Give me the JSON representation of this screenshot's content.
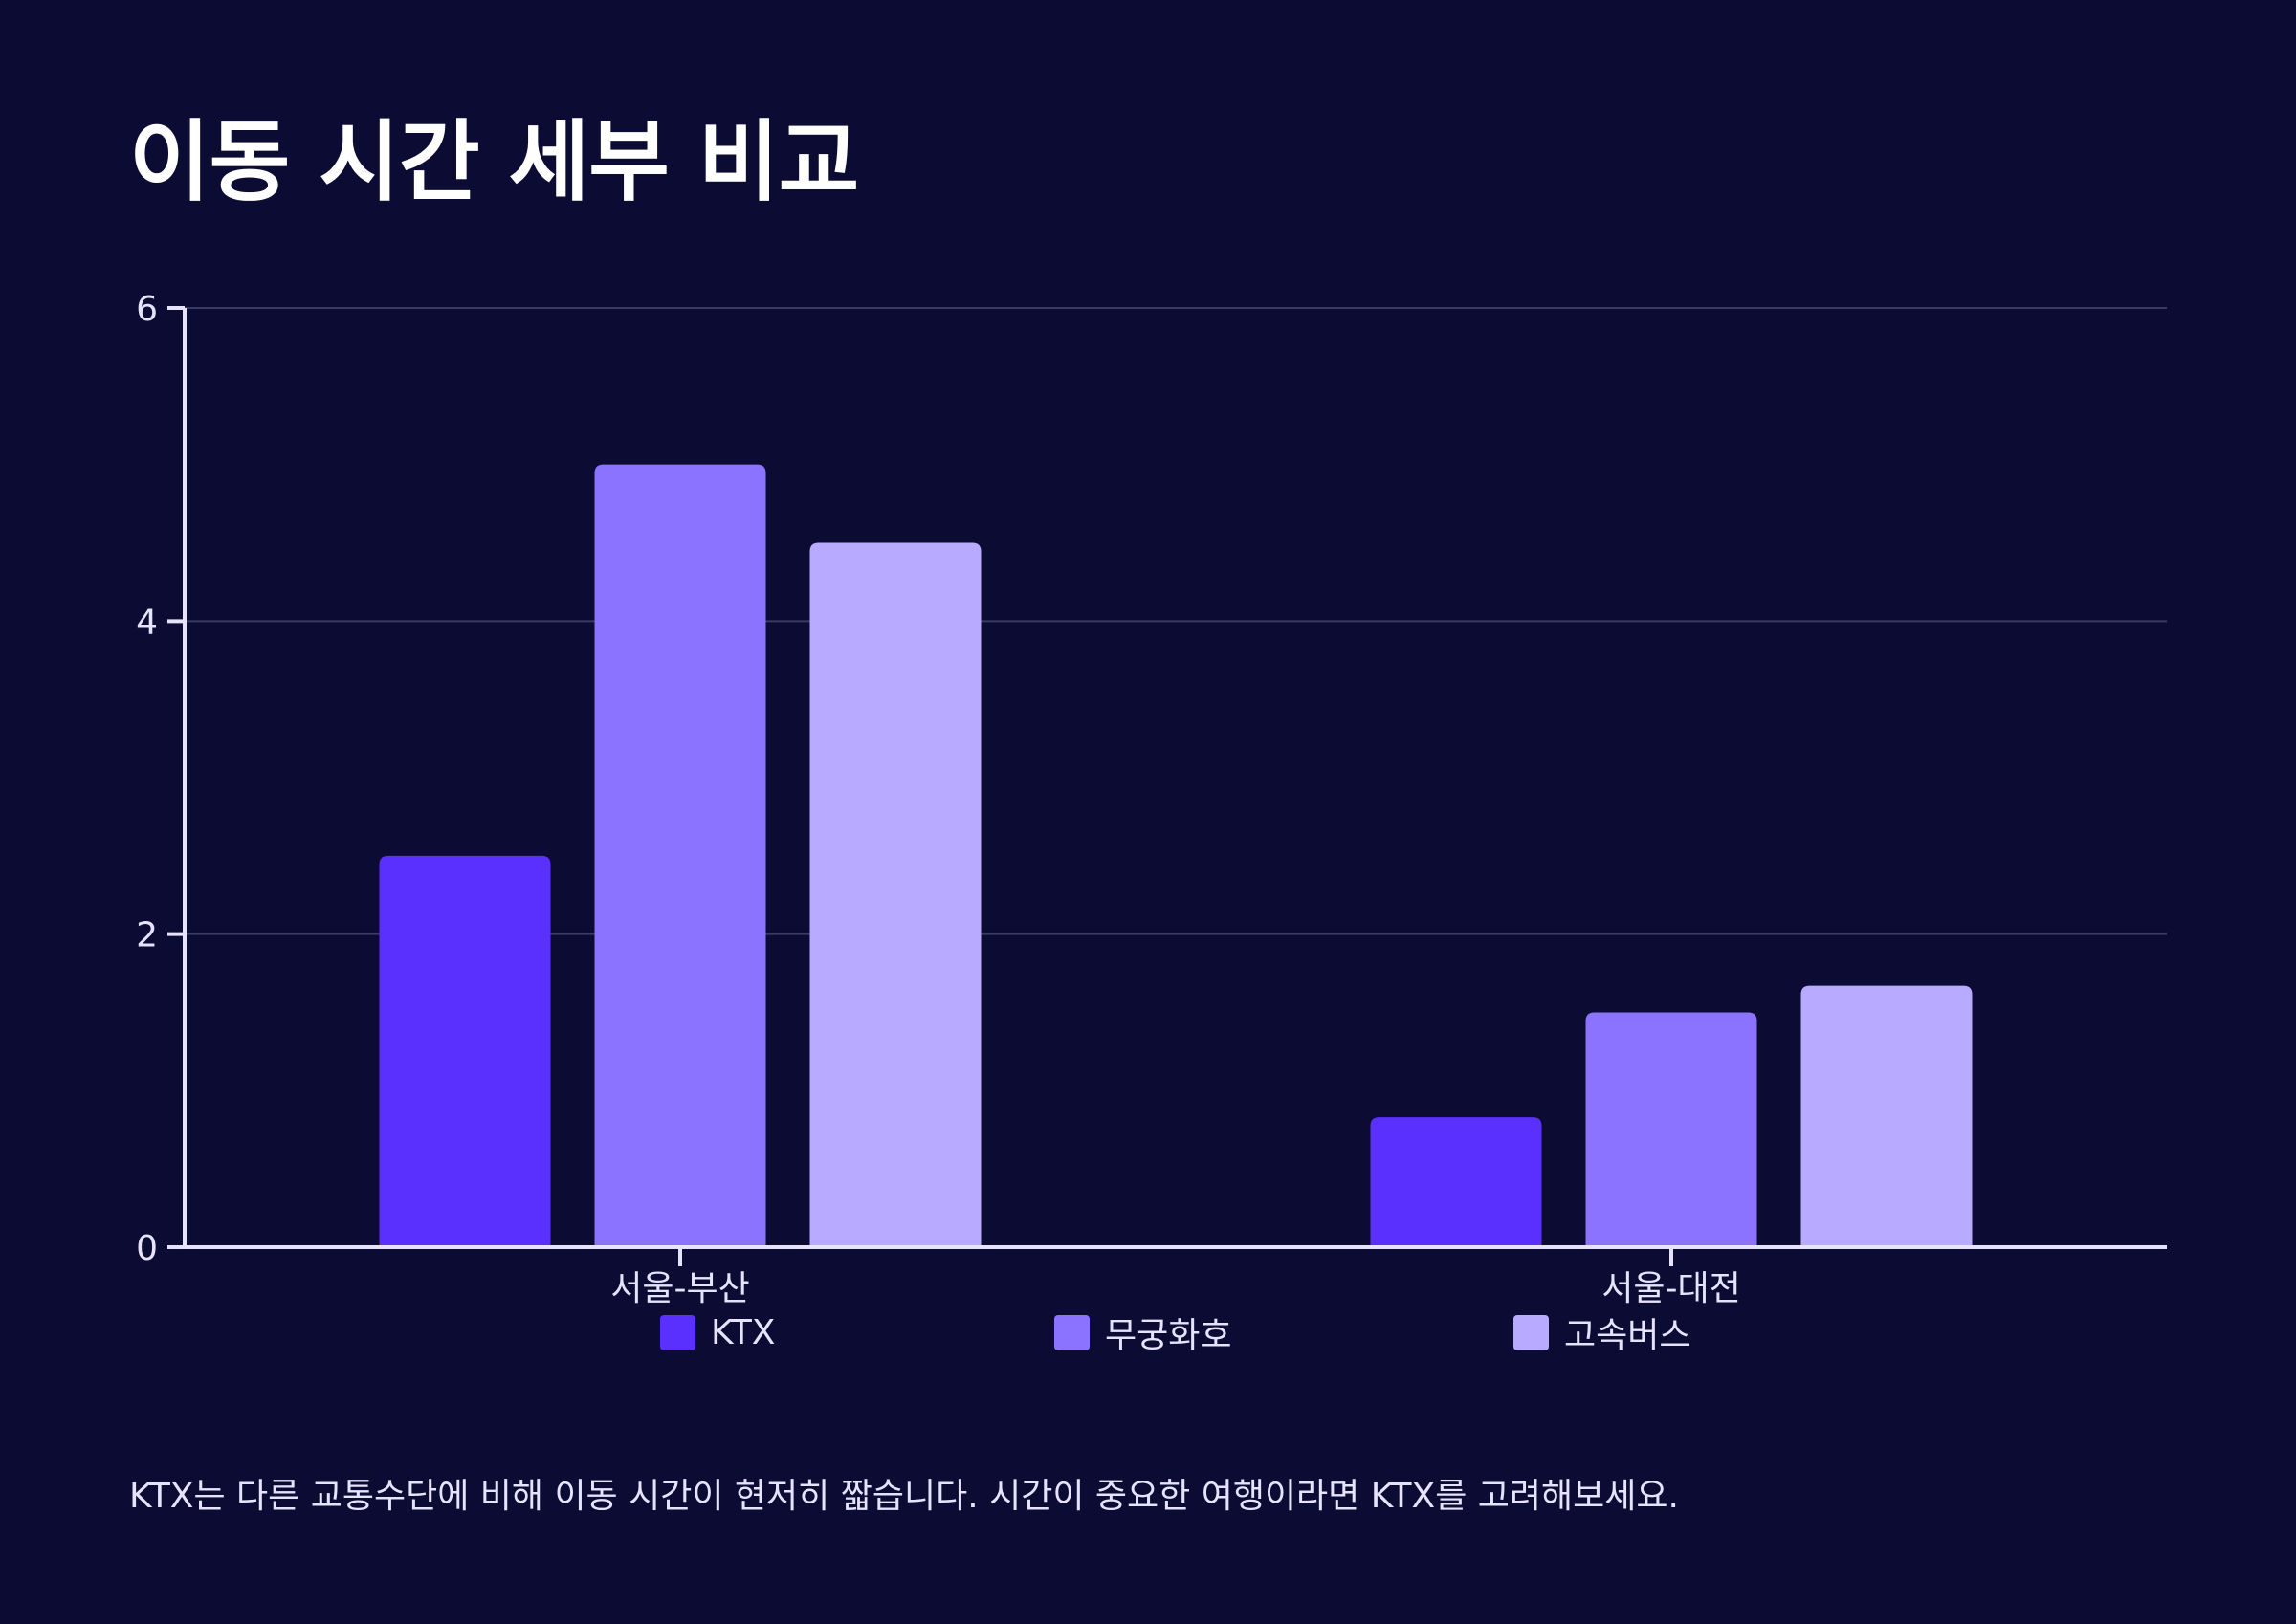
{
  "title": "이동 시간 세부 비교",
  "caption": "KTX는 다른 교통수단에 비해 이동 시간이 현저히 짧습니다. 시간이 중요한 여행이라면 KTX를 고려해보세요.",
  "colors": {
    "background": "#0b0b33",
    "axis": "#e6e3ff",
    "grid": "#3a3a66",
    "text": "#e6e3ff"
  },
  "legend": [
    {
      "label": "KTX",
      "color": "#5a30ff"
    },
    {
      "label": "무궁화호",
      "color": "#8b72ff"
    },
    {
      "label": "고속버스",
      "color": "#b8aaff"
    }
  ],
  "chart_data": {
    "type": "bar",
    "title": "이동 시간 세부 비교",
    "categories": [
      "서울-부산",
      "서울-대전"
    ],
    "series": [
      {
        "name": "KTX",
        "color": "#5a30ff",
        "values": [
          2.5,
          0.83
        ]
      },
      {
        "name": "무궁화호",
        "color": "#8b72ff",
        "values": [
          5.0,
          1.5
        ]
      },
      {
        "name": "고속버스",
        "color": "#b8aaff",
        "values": [
          4.5,
          1.67
        ]
      }
    ],
    "xlabel": "",
    "ylabel": "",
    "ylim": [
      0,
      6
    ],
    "yticks": [
      0,
      2,
      4,
      6
    ],
    "grid": true,
    "legend_position": "bottom"
  }
}
